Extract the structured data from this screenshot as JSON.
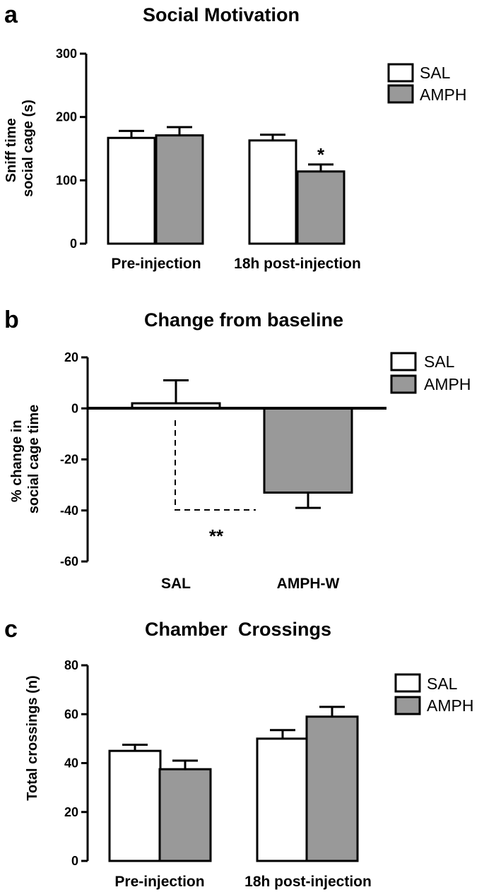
{
  "colors": {
    "sal": "#ffffff",
    "amph": "#999999",
    "stroke": "#000000"
  },
  "chart_data": [
    {
      "type": "bar",
      "panel_letter": "a",
      "title": "Social Motivation",
      "ylabel": [
        "Sniff time",
        "social cage (s)"
      ],
      "xlabel": "",
      "categories": [
        "Pre-injection",
        "18h post-injection"
      ],
      "series": [
        {
          "name": "SAL",
          "values": [
            167,
            163
          ],
          "errors": [
            11,
            9
          ]
        },
        {
          "name": "AMPH",
          "values": [
            171,
            114
          ],
          "errors": [
            13,
            11
          ]
        }
      ],
      "ylim": [
        0,
        300
      ],
      "yticks": [
        0,
        100,
        200,
        300
      ],
      "legend": "top-right",
      "annotations": [
        {
          "text": "*",
          "category": 1,
          "series": 1
        }
      ]
    },
    {
      "type": "bar",
      "panel_letter": "b",
      "title": "Change from baseline",
      "ylabel": [
        "% change in",
        "social cage time"
      ],
      "xlabel": "",
      "categories": [
        "SAL",
        "AMPH-W"
      ],
      "series": [
        {
          "name": "SAL",
          "values": [
            2,
            null
          ],
          "errors": [
            9,
            null
          ]
        },
        {
          "name": "AMPH",
          "values": [
            null,
            -33
          ],
          "errors": [
            null,
            6
          ]
        }
      ],
      "ylim": [
        -60,
        20
      ],
      "yticks": [
        -60,
        -40,
        -20,
        0,
        20
      ],
      "legend": "top-right",
      "annotations": [
        {
          "text": "**",
          "bracket_y": -40
        }
      ]
    },
    {
      "type": "bar",
      "panel_letter": "c",
      "title": "Chamber  Crossings",
      "ylabel": [
        "Total crossings (n)"
      ],
      "xlabel": "",
      "categories": [
        "Pre-injection",
        "18h post-injection"
      ],
      "series": [
        {
          "name": "SAL",
          "values": [
            45,
            50
          ],
          "errors": [
            2.5,
            3.5
          ]
        },
        {
          "name": "AMPH",
          "values": [
            37.5,
            59
          ],
          "errors": [
            3.5,
            4
          ]
        }
      ],
      "ylim": [
        0,
        80
      ],
      "yticks": [
        0,
        20,
        40,
        60,
        80
      ],
      "legend": "top-right",
      "annotations": []
    }
  ]
}
